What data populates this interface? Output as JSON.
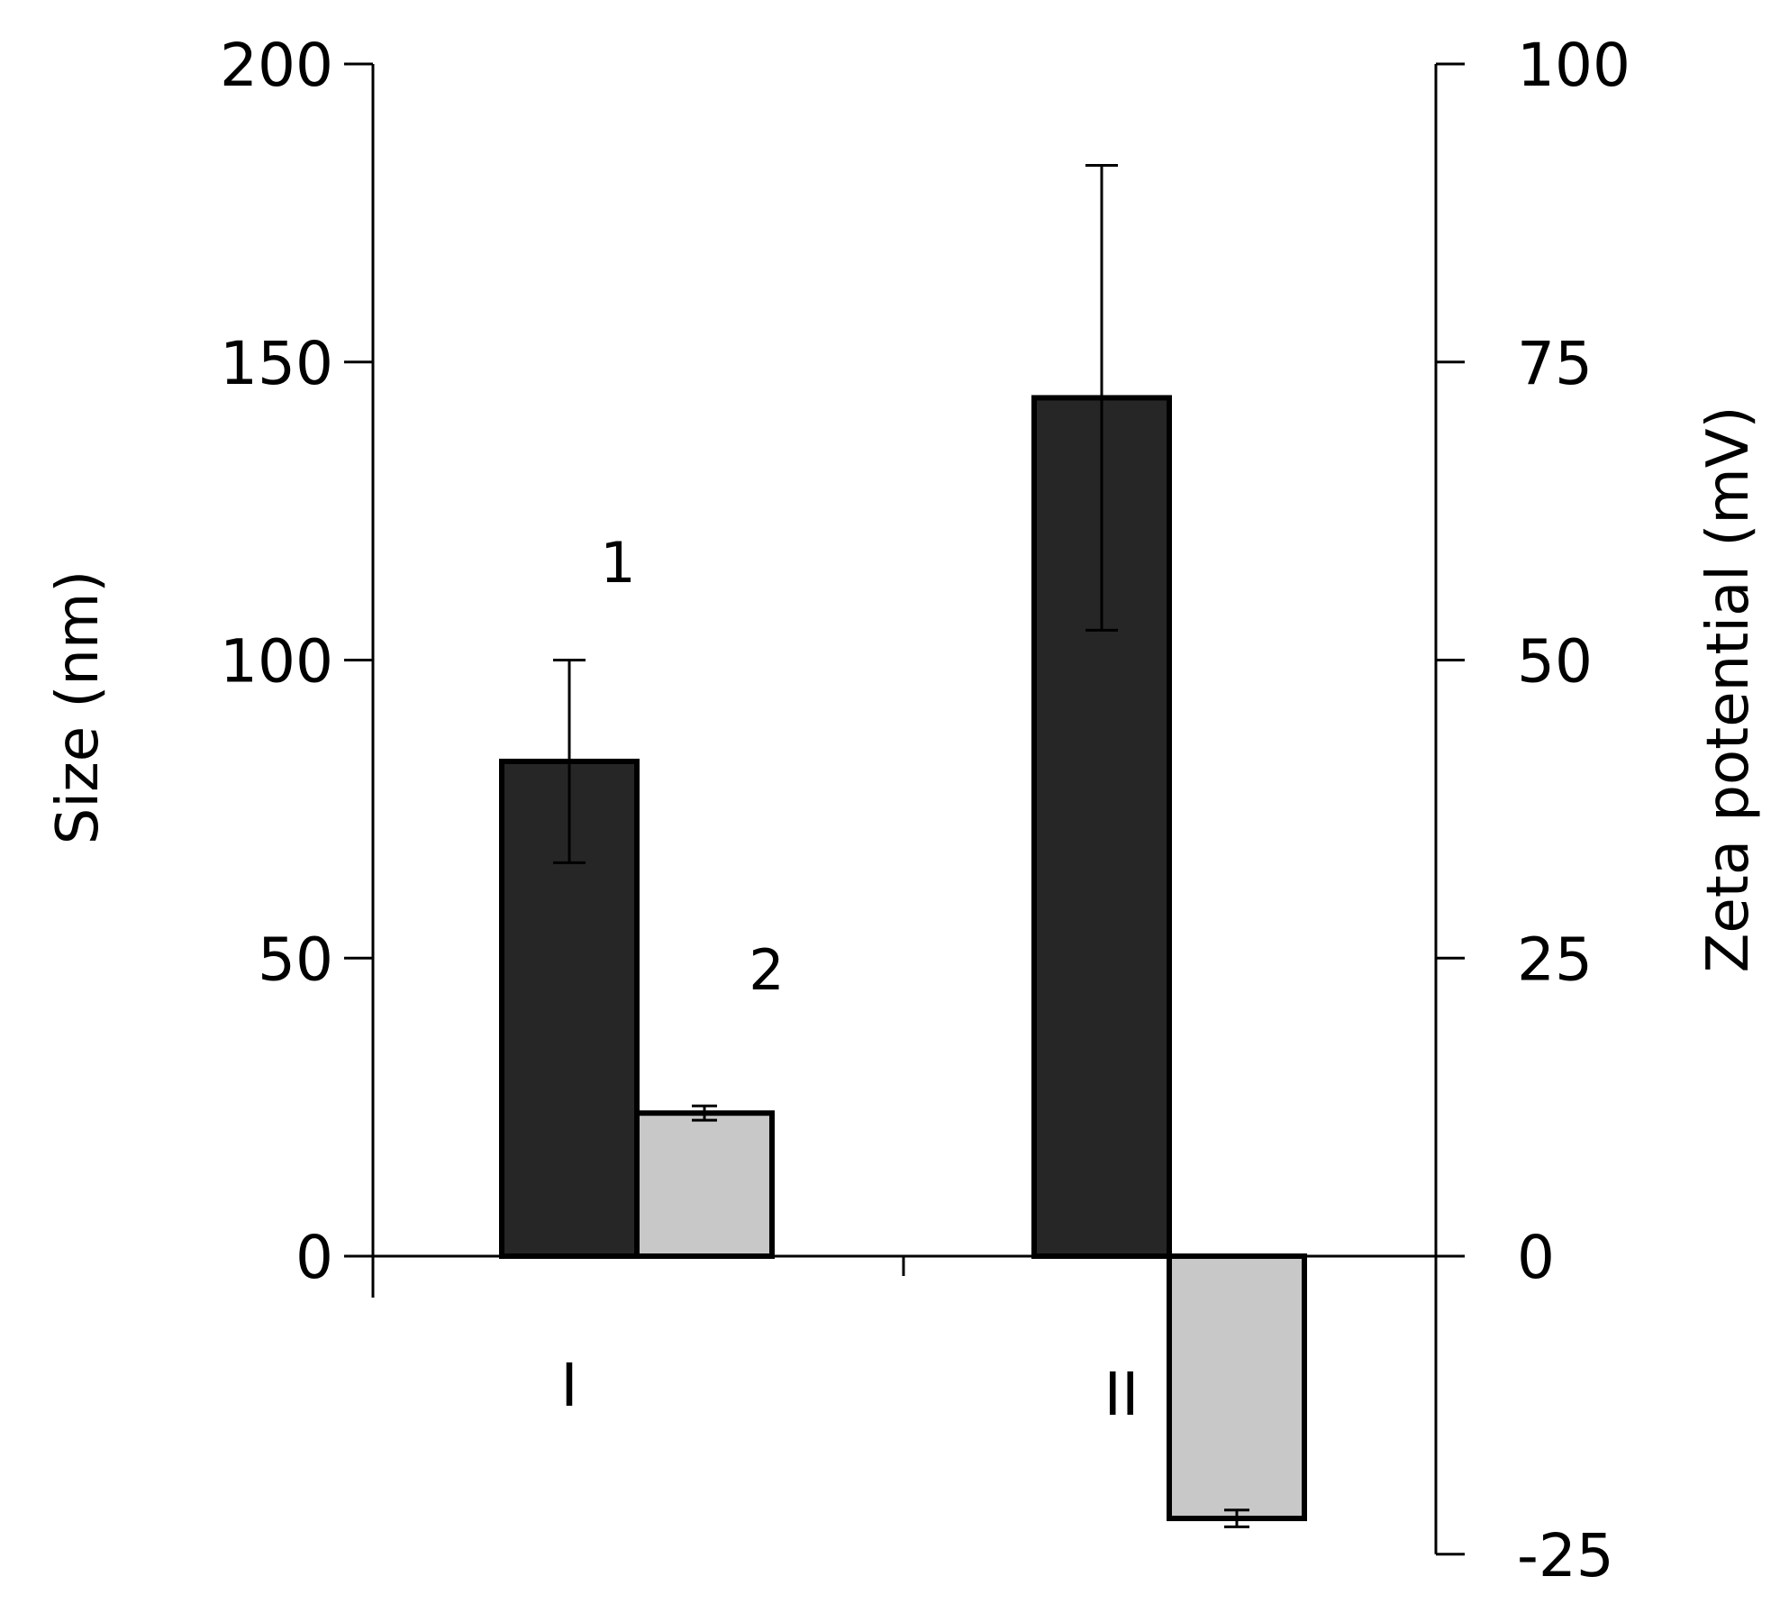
{
  "chart_data": {
    "type": "bar",
    "categories": [
      "I",
      "II"
    ],
    "series": [
      {
        "name": "1",
        "axis": "left",
        "color": "#262626",
        "values": [
          83,
          144
        ],
        "errors": [
          17,
          39
        ]
      },
      {
        "name": "2",
        "axis": "right",
        "color": "#c8c8c8",
        "values": [
          12,
          -22
        ],
        "errors": [
          0.6,
          0.7
        ]
      }
    ],
    "y_left": {
      "label": "Size (nm)",
      "range": [
        0,
        200
      ],
      "ticks": [
        "0",
        "50",
        "100",
        "150",
        "200"
      ]
    },
    "y_right": {
      "label": "Zeta potential (mV)",
      "range": [
        -25,
        100
      ],
      "ticks": [
        "-25",
        "0",
        "25",
        "50",
        "75",
        "100"
      ]
    },
    "grid": false,
    "legend": "none"
  }
}
